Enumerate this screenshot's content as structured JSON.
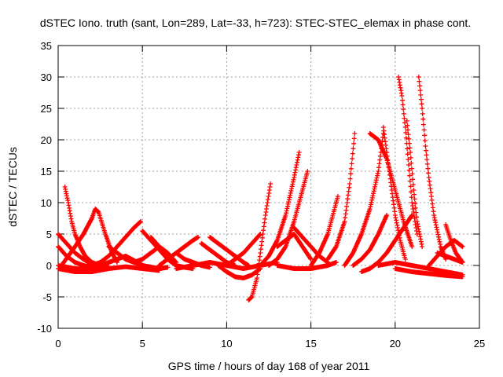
{
  "chart_data": {
    "type": "scatter",
    "title": "dSTEC Iono. truth (sant, Lon=289, Lat=-33, h=723): STEC-STEC_elemax in phase cont.",
    "xlabel": "GPS time / hours of day 168 of year 2011",
    "ylabel": "dSTEC  / TECUs",
    "xlim": [
      0,
      25
    ],
    "ylim": [
      -10,
      35
    ],
    "xticks": [
      0,
      5,
      10,
      15,
      20,
      25
    ],
    "yticks": [
      -10,
      -5,
      0,
      5,
      10,
      15,
      20,
      25,
      30,
      35
    ],
    "grid": true,
    "marker": "plus",
    "color": "#ff0000",
    "series": [
      {
        "x": [
          0.0,
          0.5,
          1.0,
          1.5,
          2.0,
          2.3
        ],
        "y": [
          5.0,
          3.5,
          2.0,
          1.0,
          0.2,
          0.0
        ]
      },
      {
        "x": [
          0.0,
          0.5,
          1.0,
          1.5,
          2.0,
          2.5,
          3.0
        ],
        "y": [
          3.0,
          1.5,
          0.5,
          0.0,
          -0.3,
          -0.5,
          -0.3
        ]
      },
      {
        "x": [
          0.0,
          1.0,
          2.0,
          3.0
        ],
        "y": [
          0.0,
          -0.5,
          -0.6,
          -0.3
        ]
      },
      {
        "x": [
          0.0,
          1.0,
          2.0,
          3.0,
          4.0,
          5.0,
          6.0
        ],
        "y": [
          -0.5,
          -1.0,
          -1.0,
          -0.5,
          -0.2,
          -0.5,
          -0.8
        ]
      },
      {
        "x": [
          0.4,
          0.6,
          0.8,
          1.0,
          1.3,
          1.6,
          2.0,
          2.5
        ],
        "y": [
          12.5,
          10.0,
          7.0,
          5.0,
          3.0,
          1.5,
          0.5,
          0.0
        ]
      },
      {
        "x": [
          0.2,
          0.6,
          1.0,
          1.5,
          2.0,
          2.2,
          2.4,
          2.8,
          3.2,
          3.5
        ],
        "y": [
          0.0,
          1.5,
          3.0,
          5.0,
          7.5,
          9.0,
          8.5,
          5.0,
          2.0,
          0.5
        ]
      },
      {
        "x": [
          2.0,
          2.5,
          3.0,
          3.5,
          4.0,
          4.5,
          4.9
        ],
        "y": [
          0.0,
          0.5,
          1.5,
          3.0,
          4.5,
          6.0,
          7.0
        ]
      },
      {
        "x": [
          2.5,
          3.0,
          3.5,
          4.0,
          4.5,
          5.0
        ],
        "y": [
          0.0,
          0.5,
          1.0,
          1.5,
          0.8,
          0.0
        ]
      },
      {
        "x": [
          3.0,
          3.5,
          4.0,
          5.0,
          6.0,
          6.5
        ],
        "y": [
          3.0,
          2.0,
          1.0,
          0.0,
          -0.5,
          -0.3
        ]
      },
      {
        "x": [
          5.0,
          5.5,
          6.0,
          6.5,
          7.0,
          7.5,
          8.0
        ],
        "y": [
          5.5,
          4.0,
          2.5,
          1.0,
          0.0,
          -0.3,
          -0.5
        ]
      },
      {
        "x": [
          5.5,
          6.0,
          6.5,
          7.0
        ],
        "y": [
          4.5,
          3.0,
          1.0,
          0.0
        ]
      },
      {
        "x": [
          4.5,
          5.0,
          5.5,
          6.0,
          6.5,
          7.0
        ],
        "y": [
          0.5,
          1.0,
          2.0,
          3.0,
          2.0,
          0.5
        ]
      },
      {
        "x": [
          6.0,
          6.5,
          7.0,
          7.5,
          8.0,
          8.3
        ],
        "y": [
          0.0,
          1.0,
          2.0,
          3.0,
          4.0,
          4.5
        ]
      },
      {
        "x": [
          7.0,
          7.5,
          8.0,
          8.5,
          9.0
        ],
        "y": [
          2.0,
          1.0,
          0.5,
          0.0,
          -0.3
        ]
      },
      {
        "x": [
          8.5,
          9.0,
          9.5,
          10.0,
          10.5
        ],
        "y": [
          3.5,
          2.5,
          1.5,
          0.5,
          0.0
        ]
      },
      {
        "x": [
          9.0,
          9.5,
          10.0,
          10.5,
          11.0,
          11.3
        ],
        "y": [
          4.5,
          3.5,
          2.5,
          1.5,
          0.5,
          0.0
        ]
      },
      {
        "x": [
          10.0,
          10.5,
          11.0,
          11.5,
          12.0
        ],
        "y": [
          0.0,
          1.0,
          2.0,
          3.5,
          5.0
        ]
      },
      {
        "x": [
          9.5,
          10.0,
          10.5,
          11.0,
          11.5,
          12.0
        ],
        "y": [
          0.0,
          -1.0,
          -1.8,
          -2.0,
          -1.5,
          -0.5
        ]
      },
      {
        "x": [
          7.0,
          8.0,
          9.0,
          10.0,
          11.0,
          12.0,
          13.0
        ],
        "y": [
          -0.5,
          0.0,
          0.5,
          0.0,
          -0.5,
          0.0,
          0.5
        ]
      },
      {
        "x": [
          11.3,
          11.5,
          11.8,
          12.0,
          12.3,
          12.6
        ],
        "y": [
          -5.5,
          -5.0,
          -2.0,
          2.0,
          8.0,
          13.0
        ]
      },
      {
        "x": [
          12.0,
          12.5,
          13.0,
          13.5,
          14.0,
          14.3
        ],
        "y": [
          0.0,
          1.5,
          4.0,
          8.0,
          14.0,
          18.0
        ]
      },
      {
        "x": [
          12.5,
          13.0,
          13.5,
          14.0,
          14.5,
          14.8
        ],
        "y": [
          0.0,
          1.0,
          3.0,
          7.0,
          12.0,
          15.0
        ]
      },
      {
        "x": [
          13.0,
          13.5,
          14.0,
          14.5,
          15.0
        ],
        "y": [
          3.0,
          4.0,
          5.0,
          3.0,
          1.0
        ]
      },
      {
        "x": [
          14.0,
          14.5,
          15.0,
          15.5,
          16.0
        ],
        "y": [
          6.0,
          4.5,
          3.0,
          1.5,
          0.5
        ]
      },
      {
        "x": [
          13.0,
          14.0,
          15.0,
          16.0,
          16.5
        ],
        "y": [
          0.0,
          -0.5,
          -0.5,
          0.0,
          0.5
        ]
      },
      {
        "x": [
          15.0,
          15.5,
          16.0,
          16.3,
          16.6
        ],
        "y": [
          0.0,
          2.0,
          5.0,
          8.0,
          11.0
        ]
      },
      {
        "x": [
          16.0,
          16.5,
          17.0,
          17.3,
          17.6
        ],
        "y": [
          1.0,
          3.0,
          7.0,
          13.0,
          21.0
        ]
      },
      {
        "x": [
          17.0,
          17.5,
          18.0,
          18.5,
          19.0,
          19.3
        ],
        "y": [
          0.0,
          2.0,
          5.0,
          9.0,
          15.0,
          21.0
        ]
      },
      {
        "x": [
          17.5,
          18.0,
          18.5,
          19.0,
          19.5
        ],
        "y": [
          0.0,
          1.0,
          2.5,
          5.0,
          8.0
        ]
      },
      {
        "x": [
          18.0,
          18.5,
          19.0,
          19.5,
          20.0,
          20.5,
          21.0
        ],
        "y": [
          -1.0,
          -0.5,
          0.5,
          2.0,
          4.0,
          6.0,
          8.0
        ]
      },
      {
        "x": [
          19.3,
          19.5,
          19.8,
          20.0,
          20.3,
          20.6
        ],
        "y": [
          22.0,
          18.0,
          12.0,
          8.0,
          4.0,
          1.0
        ]
      },
      {
        "x": [
          20.2,
          20.4,
          20.6,
          20.8,
          21.0,
          21.3
        ],
        "y": [
          30.0,
          27.0,
          22.0,
          16.0,
          10.0,
          5.0
        ]
      },
      {
        "x": [
          20.7,
          20.9,
          21.1,
          21.3,
          21.6
        ],
        "y": [
          23.0,
          18.0,
          12.0,
          7.0,
          3.0
        ]
      },
      {
        "x": [
          21.4,
          21.6,
          21.8,
          22.0,
          22.3,
          22.7,
          23.0
        ],
        "y": [
          30.0,
          25.0,
          19.0,
          14.0,
          8.0,
          3.0,
          1.0
        ]
      },
      {
        "x": [
          19.0,
          20.0,
          21.0,
          22.0,
          23.0,
          24.0
        ],
        "y": [
          0.0,
          0.5,
          0.0,
          -0.5,
          -1.0,
          -1.5
        ]
      },
      {
        "x": [
          22.0,
          22.5,
          23.0,
          23.5,
          24.0
        ],
        "y": [
          0.0,
          1.5,
          3.0,
          4.0,
          3.0
        ]
      },
      {
        "x": [
          23.0,
          23.3,
          23.6,
          24.0
        ],
        "y": [
          6.5,
          4.0,
          2.0,
          0.5
        ]
      },
      {
        "x": [
          22.5,
          23.0,
          23.5,
          24.0
        ],
        "y": [
          2.0,
          1.5,
          1.0,
          0.5
        ]
      },
      {
        "x": [
          20.0,
          21.0,
          22.0,
          23.0,
          24.0
        ],
        "y": [
          -0.5,
          -1.0,
          -1.3,
          -1.6,
          -1.8
        ]
      },
      {
        "x": [
          18.5,
          19.0,
          19.5,
          20.0,
          20.5,
          21.0
        ],
        "y": [
          21.0,
          20.0,
          17.0,
          12.0,
          7.0,
          3.0
        ]
      }
    ]
  }
}
